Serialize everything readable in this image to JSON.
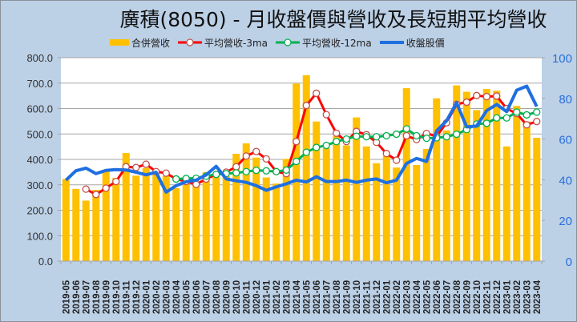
{
  "chart_data": {
    "type": "bar+line",
    "title": "廣積(8050) - 月收盤價與營收及長短期平均營收",
    "xlabel": "",
    "ylabel_left": "",
    "ylabel_right": "",
    "ylim_left": [
      0,
      800
    ],
    "ylim_right": [
      0,
      100
    ],
    "yticks_left": [
      "0.0",
      "100.0",
      "200.0",
      "300.0",
      "400.0",
      "500.0",
      "600.0",
      "700.0",
      "800.0"
    ],
    "yticks_right": [
      "0",
      "20",
      "40",
      "60",
      "80",
      "100"
    ],
    "grid": true,
    "legend_position": "top",
    "categories": [
      "2019-05",
      "2019-06",
      "2019-07",
      "2019-08",
      "2019-09",
      "2019-10",
      "2019-11",
      "2019-12",
      "2020-01",
      "2020-02",
      "2020-03",
      "2020-04",
      "2020-05",
      "2020-06",
      "2020-07",
      "2020-08",
      "2020-09",
      "2020-10",
      "2020-11",
      "2020-12",
      "2021-01",
      "2021-02",
      "2021-03",
      "2021-04",
      "2021-05",
      "2021-06",
      "2021-07",
      "2021-08",
      "2021-09",
      "2021-10",
      "2021-11",
      "2021-12",
      "2022-01",
      "2022-02",
      "2022-03",
      "2022-04",
      "2022-05",
      "2022-06",
      "2022-07",
      "2022-08",
      "2022-09",
      "2022-10",
      "2022-11",
      "2022-12",
      "2023-01",
      "2023-02",
      "2023-03",
      "2023-04"
    ],
    "series": [
      {
        "name": "合併營收",
        "type": "bar",
        "axis": "left",
        "color": "#ffc000",
        "values": [
          323,
          284,
          238,
          280,
          352,
          327,
          425,
          336,
          366,
          344,
          334,
          287,
          313,
          302,
          350,
          334,
          334,
          422,
          463,
          407,
          329,
          305,
          402,
          698,
          731,
          549,
          444,
          491,
          455,
          565,
          451,
          385,
          413,
          368,
          680,
          378,
          441,
          640,
          514,
          691,
          666,
          594,
          677,
          670,
          451,
          610,
          549,
          485
        ]
      },
      {
        "name": "平均營收-3ma",
        "type": "line",
        "axis": "left",
        "color": "#ff0000",
        "marker": "circle",
        "values": [
          null,
          null,
          283,
          262,
          287,
          313,
          371,
          368,
          381,
          352,
          346,
          323,
          313,
          302,
          323,
          341,
          350,
          371,
          413,
          431,
          402,
          352,
          344,
          470,
          612,
          660,
          576,
          503,
          470,
          510,
          497,
          467,
          423,
          397,
          493,
          478,
          502,
          491,
          544,
          617,
          625,
          651,
          647,
          649,
          600,
          580,
          536,
          549
        ]
      },
      {
        "name": "平均營收-12ma",
        "type": "line",
        "axis": "left",
        "color": "#00b050",
        "marker": "circle",
        "values": [
          null,
          null,
          null,
          null,
          null,
          null,
          null,
          null,
          null,
          null,
          null,
          323,
          325,
          326,
          334,
          341,
          344,
          347,
          352,
          357,
          355,
          352,
          358,
          392,
          428,
          447,
          455,
          470,
          480,
          491,
          489,
          489,
          493,
          499,
          520,
          493,
          483,
          485,
          489,
          499,
          517,
          539,
          542,
          563,
          563,
          586,
          575,
          586
        ]
      },
      {
        "name": "收盤股價",
        "type": "line",
        "axis": "right",
        "color": "#1f6fe0",
        "values": [
          39.8,
          44.4,
          45.7,
          43,
          44.6,
          45,
          44.8,
          43.7,
          42.4,
          43.7,
          33.9,
          37.1,
          39,
          39.8,
          42.4,
          46.6,
          40.4,
          39.5,
          38.7,
          37.1,
          34.8,
          36.5,
          38,
          39.8,
          38.9,
          41.5,
          39.1,
          39.1,
          39.8,
          38.7,
          39.8,
          40.4,
          38.5,
          39.8,
          48,
          50.5,
          49,
          64,
          69,
          77.8,
          66,
          66.4,
          74,
          77,
          73.5,
          84,
          86,
          76
        ]
      }
    ]
  },
  "legend": {
    "items": [
      {
        "label": "合併營收",
        "color": "#ffc000"
      },
      {
        "label": "平均營收-3ma",
        "color": "#ff0000"
      },
      {
        "label": "平均營收-12ma",
        "color": "#00b050"
      },
      {
        "label": "收盤股價",
        "color": "#1f6fe0"
      }
    ]
  }
}
